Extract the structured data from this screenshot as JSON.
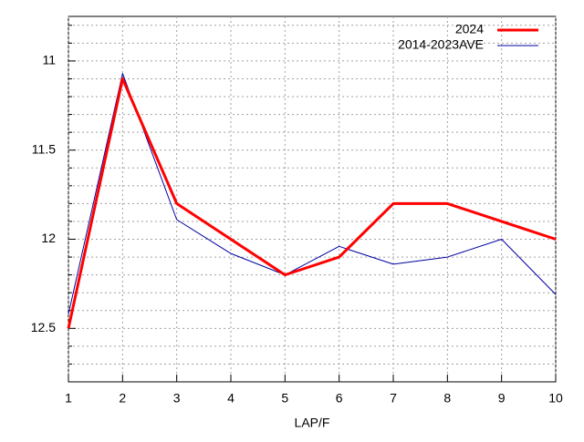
{
  "chart_data": {
    "type": "line",
    "x_label": "LAP/F",
    "x": [
      1,
      2,
      3,
      4,
      5,
      6,
      7,
      8,
      9,
      10
    ],
    "series": [
      {
        "name": "2024",
        "color": "#ff0000",
        "width": 3,
        "values": [
          12.5,
          11.1,
          11.8,
          12.0,
          12.2,
          12.1,
          11.8,
          11.8,
          11.9,
          12.0
        ]
      },
      {
        "name": "2014-2023AVE",
        "color": "#0000a0",
        "width": 1,
        "values": [
          12.42,
          11.07,
          11.89,
          12.08,
          12.2,
          12.04,
          12.14,
          12.1,
          12.0,
          12.31
        ]
      }
    ],
    "xlim": [
      1,
      10
    ],
    "xticks": [
      1,
      2,
      3,
      4,
      5,
      6,
      7,
      8,
      9,
      10
    ],
    "ylim": [
      10.75,
      12.8
    ],
    "y_reversed": true,
    "yticks": [
      11,
      11.5,
      12,
      12.5
    ],
    "y_minor_ticks": [
      10.8,
      10.9,
      11.1,
      11.2,
      11.3,
      11.4,
      11.6,
      11.7,
      11.8,
      11.9,
      12.1,
      12.2,
      12.3,
      12.4,
      12.6,
      12.7
    ],
    "grid": true,
    "legend": "top-right"
  }
}
